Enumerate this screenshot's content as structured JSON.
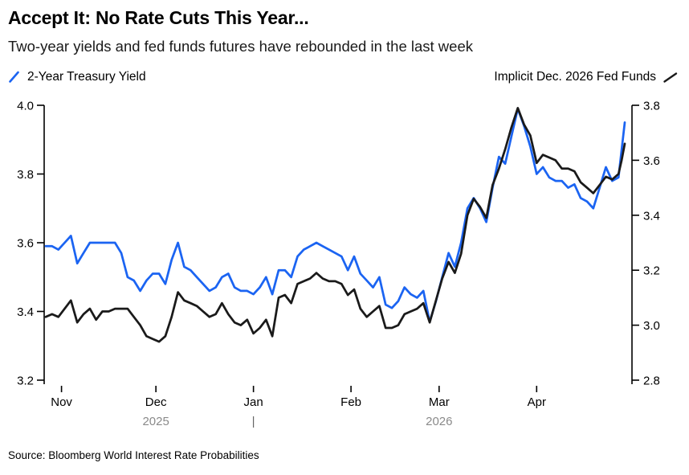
{
  "header": {
    "title": "Accept It: No Rate Cuts This Year...",
    "subtitle": "Two-year yields and fed funds futures have rebounded in the last week"
  },
  "legend": {
    "left": {
      "label": "2-Year Treasury Yield",
      "color": "#1b64f2"
    },
    "right": {
      "label": "Implicit Dec. 2026 Fed Funds",
      "color": "#1a1a1a"
    }
  },
  "footer": {
    "source": "Source: Bloomberg World Interest Rate Probabilities"
  },
  "colors": {
    "treasury_blue": "#1b64f2",
    "fed_funds_black": "#1a1a1a",
    "year_gray": "#8a8a8a",
    "divider_gray": "#666666",
    "axis_black": "#000000"
  },
  "chart_data": {
    "type": "line",
    "title": "Accept It: No Rate Cuts This Year...",
    "subtitle": "Two-year yields and fed funds futures have rebounded in the last week",
    "grid": false,
    "legend_position": "top",
    "x": [
      "2025-10-27",
      "2025-10-29",
      "2025-10-31",
      "2025-11-02",
      "2025-11-04",
      "2025-11-06",
      "2025-11-08",
      "2025-11-10",
      "2025-11-12",
      "2025-11-14",
      "2025-11-16",
      "2025-11-18",
      "2025-11-20",
      "2025-11-22",
      "2025-11-24",
      "2025-11-26",
      "2025-11-28",
      "2025-11-30",
      "2025-12-02",
      "2025-12-04",
      "2025-12-06",
      "2025-12-08",
      "2025-12-10",
      "2025-12-12",
      "2025-12-14",
      "2025-12-16",
      "2025-12-18",
      "2025-12-20",
      "2025-12-22",
      "2025-12-24",
      "2025-12-26",
      "2025-12-28",
      "2025-12-30",
      "2026-01-01",
      "2026-01-03",
      "2026-01-05",
      "2026-01-07",
      "2026-01-09",
      "2026-01-11",
      "2026-01-13",
      "2026-01-15",
      "2026-01-17",
      "2026-01-19",
      "2026-01-21",
      "2026-01-23",
      "2026-01-25",
      "2026-01-27",
      "2026-01-29",
      "2026-01-31",
      "2026-02-02",
      "2026-02-04",
      "2026-02-06",
      "2026-02-08",
      "2026-02-10",
      "2026-02-12",
      "2026-02-14",
      "2026-02-16",
      "2026-02-18",
      "2026-02-20",
      "2026-02-22",
      "2026-02-24",
      "2026-02-26",
      "2026-02-28",
      "2026-03-02",
      "2026-03-04",
      "2026-03-06",
      "2026-03-08",
      "2026-03-10",
      "2026-03-12",
      "2026-03-14",
      "2026-03-16",
      "2026-03-18",
      "2026-03-20",
      "2026-03-22",
      "2026-03-24",
      "2026-03-26",
      "2026-03-28",
      "2026-03-30",
      "2026-04-01",
      "2026-04-03",
      "2026-04-05",
      "2026-04-07",
      "2026-04-09",
      "2026-04-11",
      "2026-04-13",
      "2026-04-15",
      "2026-04-17",
      "2026-04-19",
      "2026-04-21",
      "2026-04-23",
      "2026-04-25",
      "2026-04-27",
      "2026-04-28",
      "2026-04-29"
    ],
    "series": [
      {
        "name": "2-Year Treasury Yield",
        "axis": "left",
        "color": "#1b64f2",
        "values": [
          3.59,
          3.59,
          3.58,
          3.6,
          3.62,
          3.54,
          3.57,
          3.6,
          3.6,
          3.6,
          3.6,
          3.6,
          3.57,
          3.5,
          3.49,
          3.46,
          3.49,
          3.51,
          3.51,
          3.48,
          3.55,
          3.6,
          3.53,
          3.52,
          3.5,
          3.48,
          3.46,
          3.47,
          3.5,
          3.51,
          3.47,
          3.46,
          3.46,
          3.45,
          3.47,
          3.5,
          3.45,
          3.52,
          3.52,
          3.5,
          3.56,
          3.58,
          3.59,
          3.6,
          3.59,
          3.58,
          3.57,
          3.56,
          3.52,
          3.56,
          3.51,
          3.49,
          3.47,
          3.5,
          3.42,
          3.41,
          3.43,
          3.47,
          3.45,
          3.44,
          3.46,
          3.37,
          3.43,
          3.5,
          3.57,
          3.53,
          3.6,
          3.7,
          3.73,
          3.7,
          3.66,
          3.76,
          3.85,
          3.83,
          3.91,
          3.99,
          3.94,
          3.88,
          3.8,
          3.82,
          3.79,
          3.78,
          3.78,
          3.76,
          3.77,
          3.73,
          3.72,
          3.7,
          3.76,
          3.82,
          3.78,
          3.79,
          3.87,
          3.95
        ]
      },
      {
        "name": "Implicit Dec. 2026 Fed Funds",
        "axis": "right",
        "color": "#1a1a1a",
        "values": [
          3.03,
          3.04,
          3.03,
          3.06,
          3.09,
          3.01,
          3.04,
          3.06,
          3.02,
          3.05,
          3.05,
          3.06,
          3.06,
          3.06,
          3.03,
          3.0,
          2.96,
          2.95,
          2.94,
          2.96,
          3.03,
          3.12,
          3.09,
          3.08,
          3.07,
          3.05,
          3.03,
          3.04,
          3.08,
          3.04,
          3.01,
          3.0,
          3.02,
          2.97,
          2.99,
          3.02,
          2.96,
          3.1,
          3.11,
          3.08,
          3.15,
          3.16,
          3.17,
          3.19,
          3.17,
          3.16,
          3.16,
          3.15,
          3.11,
          3.13,
          3.06,
          3.03,
          3.05,
          3.07,
          2.99,
          2.99,
          3.0,
          3.04,
          3.05,
          3.06,
          3.08,
          3.01,
          3.09,
          3.17,
          3.23,
          3.19,
          3.26,
          3.4,
          3.46,
          3.43,
          3.39,
          3.51,
          3.57,
          3.64,
          3.72,
          3.79,
          3.73,
          3.69,
          3.59,
          3.62,
          3.61,
          3.6,
          3.57,
          3.57,
          3.56,
          3.52,
          3.5,
          3.48,
          3.51,
          3.54,
          3.53,
          3.55,
          3.6,
          3.66
        ]
      }
    ],
    "left_axis": {
      "label": "2-Year Treasury Yield",
      "min": 3.2,
      "max": 4.0,
      "ticks": [
        4.0,
        3.8,
        3.6,
        3.4,
        3.2
      ]
    },
    "right_axis": {
      "label": "Implicit Dec. 2026 Fed Funds",
      "min": 2.8,
      "max": 3.8,
      "ticks": [
        3.8,
        3.6,
        3.4,
        3.2,
        3.0,
        2.8
      ]
    },
    "x_axis": {
      "months": [
        {
          "label": "Nov",
          "date": "2025-11-01"
        },
        {
          "label": "Dec",
          "date": "2025-12-01"
        },
        {
          "label": "Jan",
          "date": "2026-01-01"
        },
        {
          "label": "Feb",
          "date": "2026-02-01"
        },
        {
          "label": "Mar",
          "date": "2026-03-01"
        },
        {
          "label": "Apr",
          "date": "2026-04-01"
        }
      ],
      "years": [
        {
          "label": "2025",
          "date": "2025-12-01",
          "divider": false
        },
        {
          "label": "|",
          "date": "2026-01-01",
          "divider": true
        },
        {
          "label": "2026",
          "date": "2026-03-01",
          "divider": false
        }
      ]
    }
  }
}
